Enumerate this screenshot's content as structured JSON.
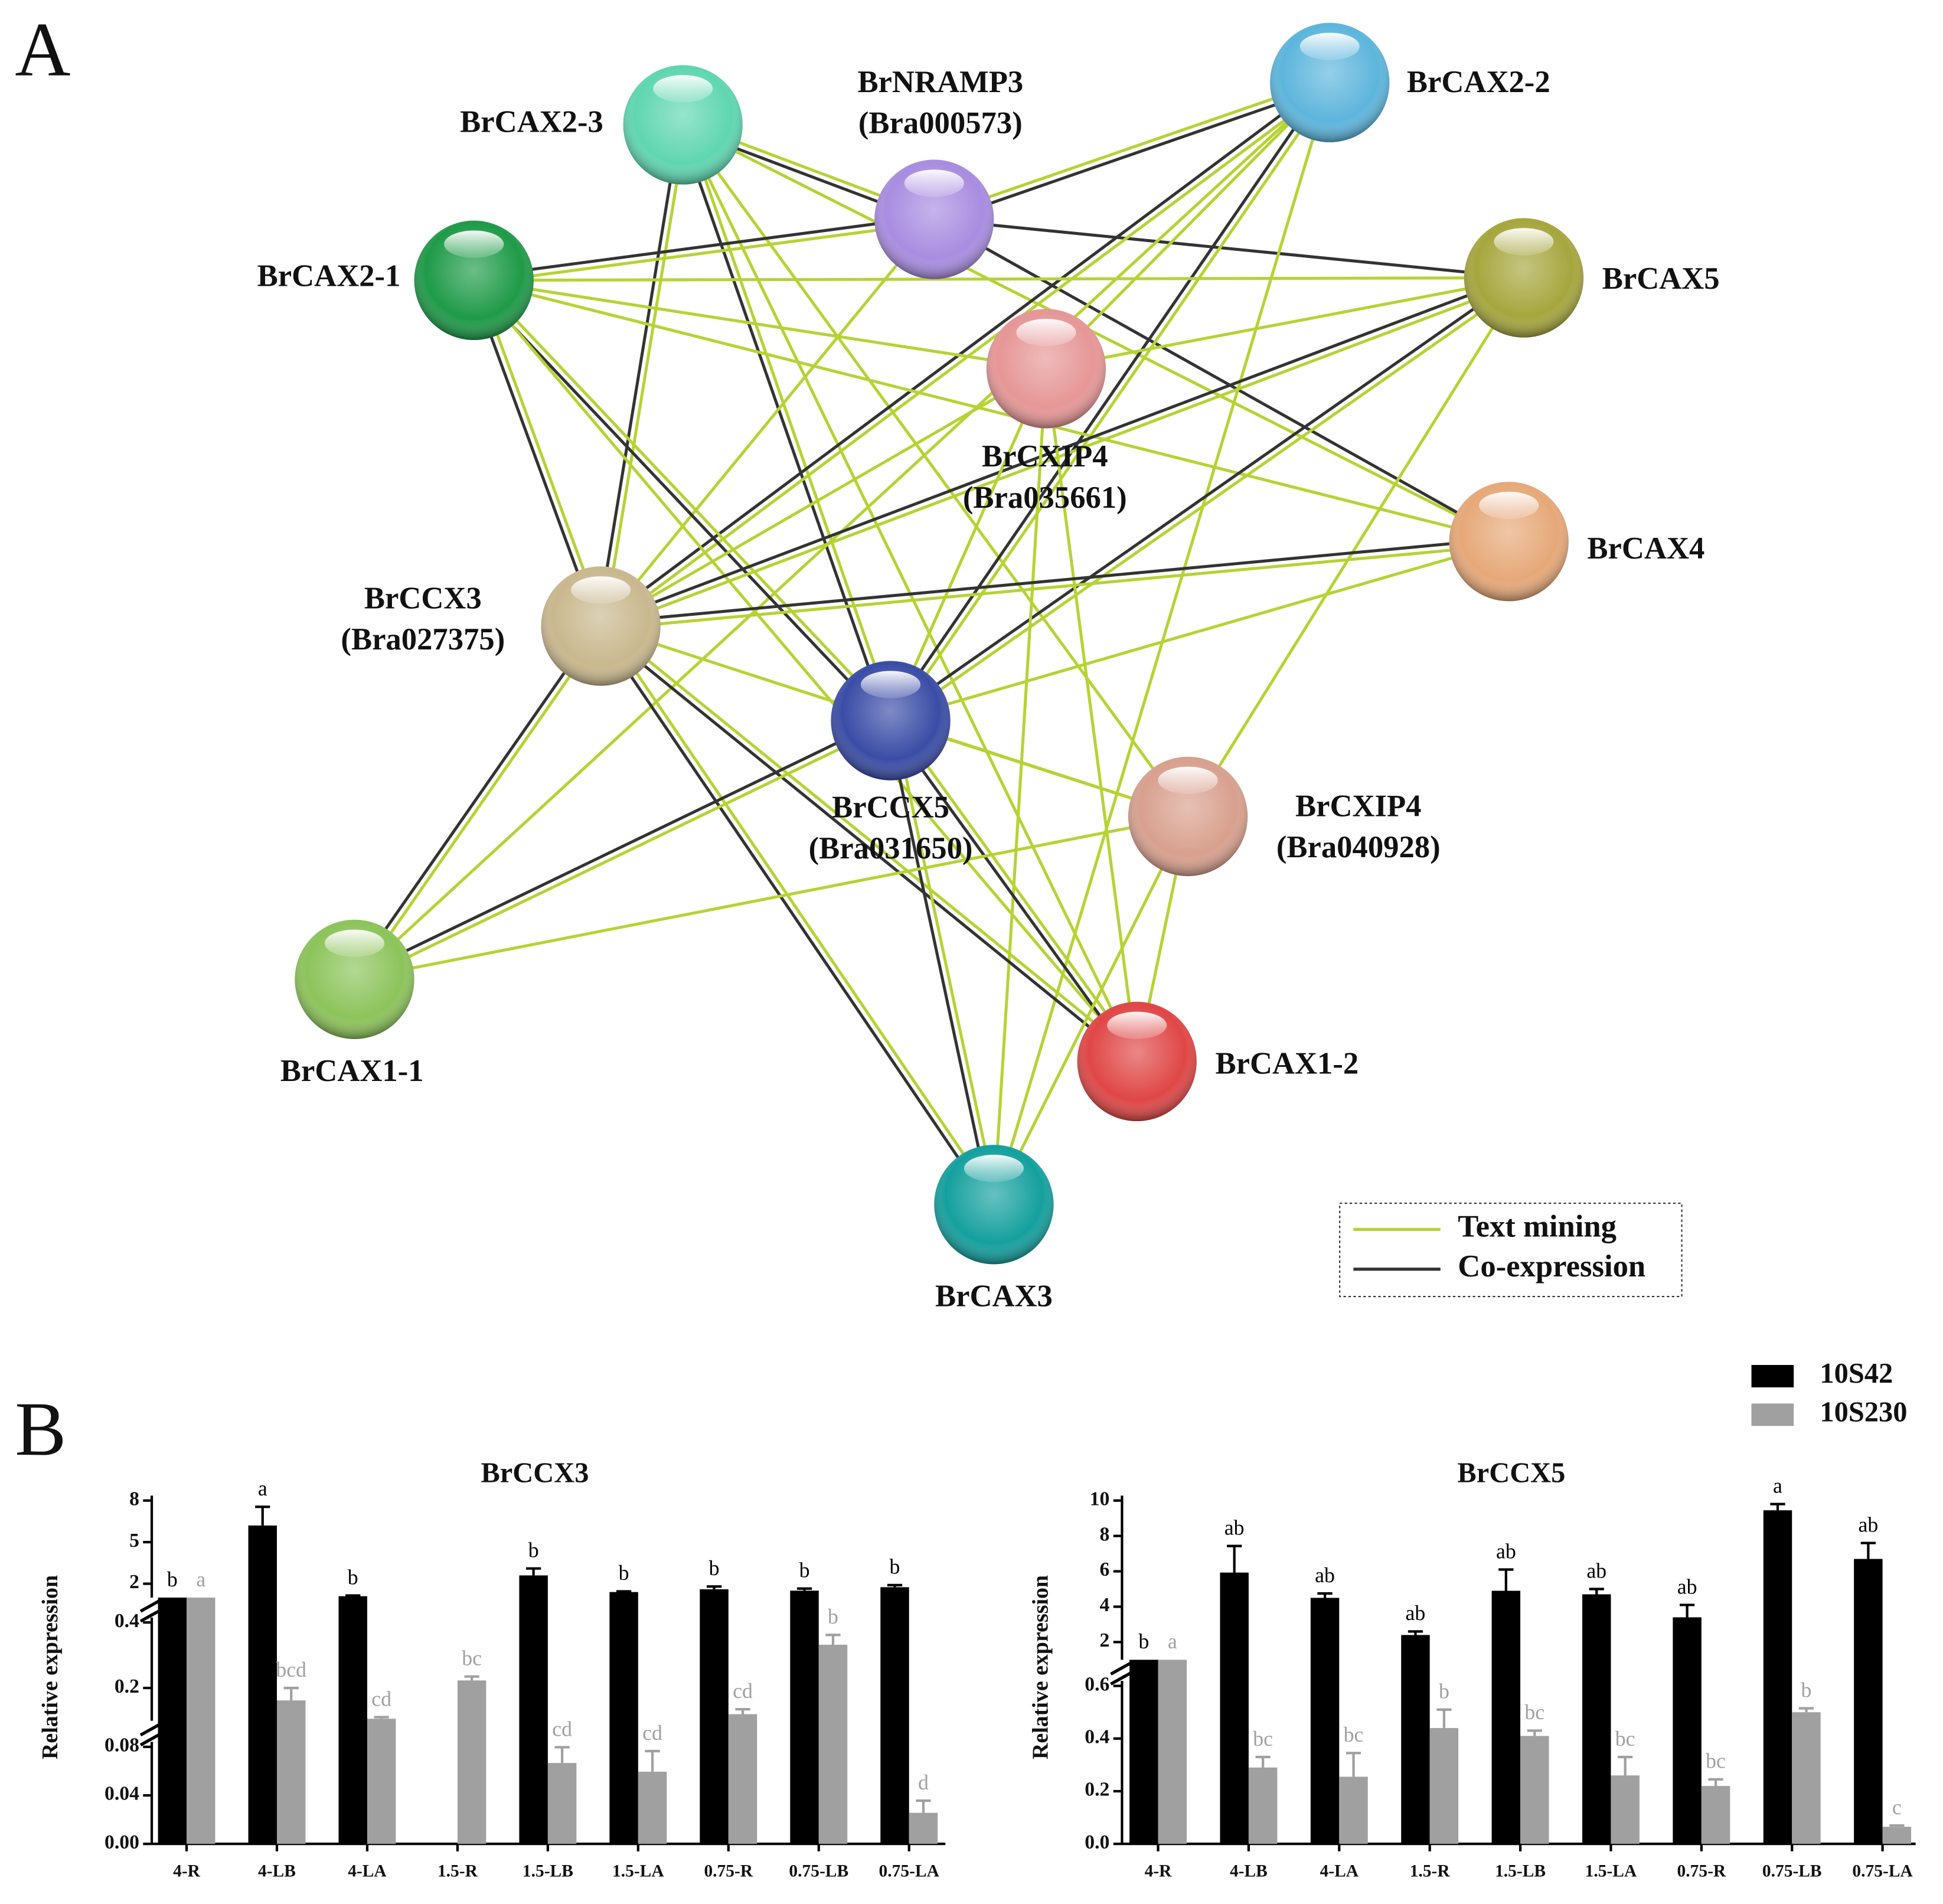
{
  "panel_labels": [
    "A",
    "B"
  ],
  "network": {
    "nodes": [
      {
        "lines": [
          "BrCAX2-3"
        ],
        "color": "#5fd6b0"
      },
      {
        "lines": [
          "BrNRAMP3",
          "(Bra000573)"
        ],
        "color": "#a88ce0"
      },
      {
        "lines": [
          "BrCAX2-2"
        ],
        "color": "#5db5dc"
      },
      {
        "lines": [
          "BrCAX2-1"
        ],
        "color": "#1e9a48"
      },
      {
        "lines": [
          "BrCAX5"
        ],
        "color": "#a6a63e"
      },
      {
        "lines": [
          "BrCXIP4",
          "(Bra035661)"
        ],
        "color": "#e69696"
      },
      {
        "lines": [
          "BrCAX4"
        ],
        "color": "#e6a878"
      },
      {
        "lines": [
          "BrCCX3",
          "(Bra027375)"
        ],
        "color": "#c9b88e"
      },
      {
        "lines": [
          "BrCCX5",
          "(Bra031650)"
        ],
        "color": "#3a4ca6"
      },
      {
        "lines": [
          "BrCXIP4",
          "(Bra040928)"
        ],
        "color": "#d8a08e"
      },
      {
        "lines": [
          "BrCAX1-1"
        ],
        "color": "#8cc35a"
      },
      {
        "lines": [
          "BrCAX1-2"
        ],
        "color": "#e04646"
      },
      {
        "lines": [
          "BrCAX3"
        ],
        "color": "#14a09e"
      }
    ],
    "legend": [
      {
        "label": "Text mining",
        "color": "#b6d334"
      },
      {
        "label": "Co-expression",
        "color": "#333333"
      }
    ]
  },
  "legend": [
    {
      "name": "10S42",
      "color": "#000000"
    },
    {
      "name": "10S230",
      "color": "#a0a0a0"
    }
  ],
  "chart_data": [
    {
      "type": "bar",
      "title": "BrCCX3",
      "y_label": "Relative expression",
      "categories": [
        "4-R",
        "4-LB",
        "4-LA",
        "1.5-R",
        "1.5-LB",
        "1.5-LA",
        "0.75-R",
        "0.75-LB",
        "0.75-LA"
      ],
      "y_segments": [
        {
          "ylim": [
            1,
            8
          ],
          "yticks": [
            2,
            5,
            8
          ]
        },
        {
          "ylim": [
            0.1,
            0.4
          ],
          "yticks": [
            0.2,
            0.4
          ]
        },
        {
          "ylim": [
            0,
            0.08
          ],
          "yticks": [
            {
              "value": 0,
              "label": "0.00"
            },
            0.04,
            0.08
          ]
        }
      ],
      "series": [
        {
          "values": [
            1,
            6.2,
            1.1,
            null,
            2.6,
            1.4,
            1.6,
            1.5,
            1.75
          ],
          "errors": [
            null,
            1.35,
            0.05,
            null,
            0.5,
            0.05,
            0.2,
            0.15,
            0.15
          ],
          "letters": [
            "b",
            "a",
            "b",
            null,
            "b",
            "b",
            "b",
            "b",
            "b"
          ]
        },
        {
          "values": [
            1,
            0.162,
            0.106,
            0.223,
            0.0667,
            0.0595,
            0.12,
            0.332,
            0.0256
          ],
          "errors": [
            null,
            0.038,
            0.005,
            0.012,
            0.013,
            0.017,
            0.015,
            0.03,
            0.01
          ],
          "letters": [
            "a",
            "bcd",
            "cd",
            "bc",
            "cd",
            "cd",
            "cd",
            "b",
            "d"
          ]
        }
      ]
    },
    {
      "type": "bar",
      "title": "BrCCX5",
      "y_label": "Relative expression",
      "categories": [
        "4-R",
        "4-LB",
        "4-LA",
        "1.5-R",
        "1.5-LB",
        "1.5-LA",
        "0.75-R",
        "0.75-LB",
        "0.75-LA"
      ],
      "y_segments": [
        {
          "ylim": [
            1,
            10
          ],
          "yticks": [
            2,
            4,
            6,
            8,
            10
          ]
        },
        {
          "ylim": [
            0,
            0.6
          ],
          "yticks": [
            {
              "value": 0,
              "label": "0.0"
            },
            0.2,
            0.4,
            0.6
          ]
        }
      ],
      "series": [
        {
          "values": [
            1,
            5.93,
            4.5,
            2.4,
            4.9,
            4.7,
            3.4,
            9.45,
            6.7
          ],
          "errors": [
            null,
            1.5,
            0.25,
            0.2,
            1.2,
            0.3,
            0.7,
            0.35,
            0.9
          ],
          "letters": [
            "b",
            "ab",
            "ab",
            "ab",
            "ab",
            "ab",
            "ab",
            "a",
            "ab"
          ]
        },
        {
          "values": [
            1,
            0.29,
            0.255,
            0.44,
            0.41,
            0.26,
            0.22,
            0.5,
            0.065
          ],
          "errors": [
            null,
            0.04,
            0.09,
            0.07,
            0.02,
            0.07,
            0.025,
            0.015,
            0.005
          ],
          "letters": [
            "a",
            "bc",
            "bc",
            "b",
            "bc",
            "bc",
            "bc",
            "b",
            "c"
          ]
        }
      ]
    }
  ]
}
